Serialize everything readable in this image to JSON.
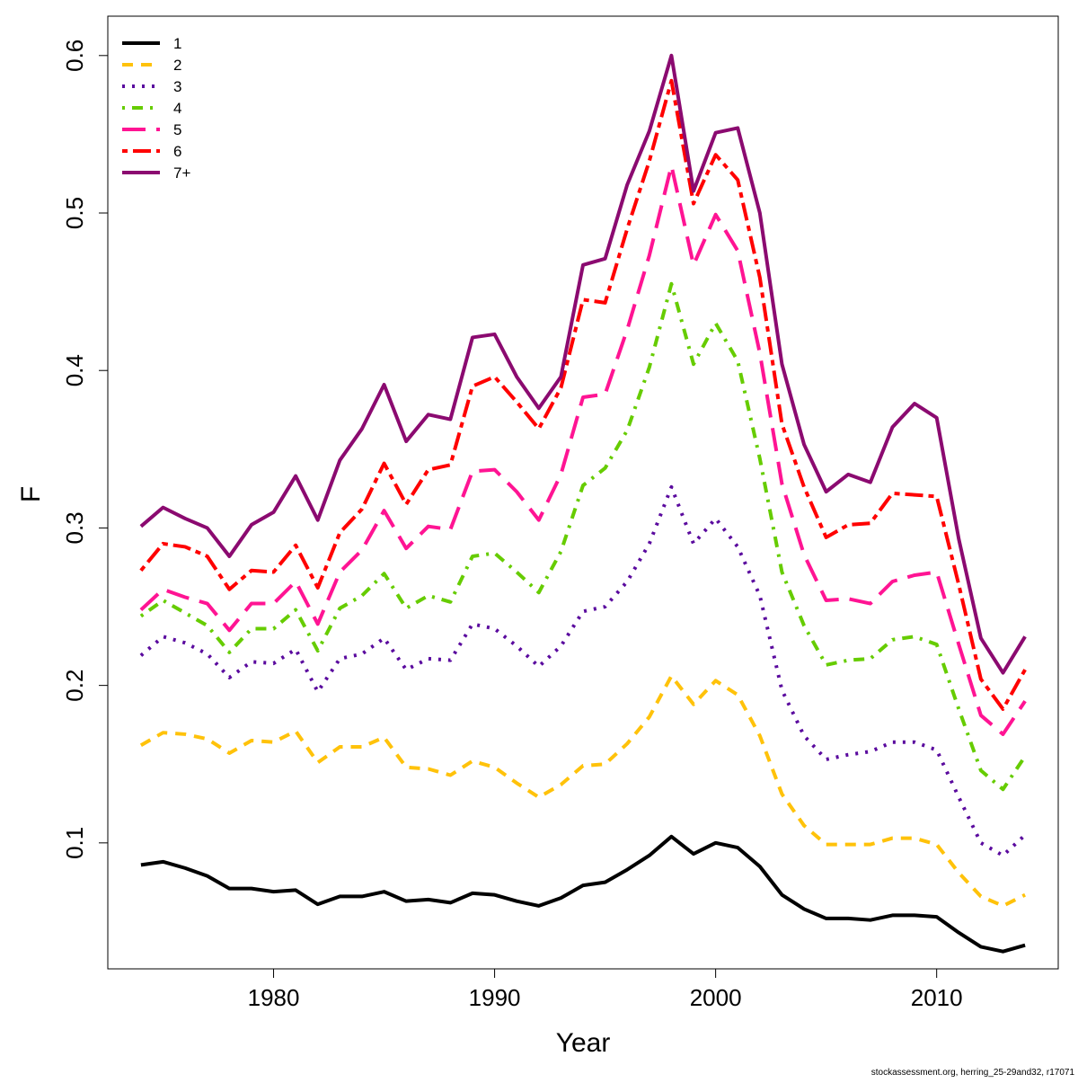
{
  "chart_data": {
    "type": "line",
    "xlabel": "Year",
    "ylabel": "F",
    "xlim": [
      1972.5,
      2015.5
    ],
    "ylim": [
      0.02,
      0.625
    ],
    "x_ticks": [
      1980,
      1990,
      2000,
      2010
    ],
    "y_ticks": [
      0.1,
      0.2,
      0.3,
      0.4,
      0.5,
      0.6
    ],
    "x_tick_labels": [
      "1980",
      "1990",
      "2000",
      "2010"
    ],
    "y_tick_labels": [
      "0.1",
      "0.2",
      "0.3",
      "0.4",
      "0.5",
      "0.6"
    ],
    "legend_position": "top-left",
    "grid": false,
    "x": [
      1974,
      1975,
      1976,
      1977,
      1978,
      1979,
      1980,
      1981,
      1982,
      1983,
      1984,
      1985,
      1986,
      1987,
      1988,
      1989,
      1990,
      1991,
      1992,
      1993,
      1994,
      1995,
      1996,
      1997,
      1998,
      1999,
      2000,
      2001,
      2002,
      2003,
      2004,
      2005,
      2006,
      2007,
      2008,
      2009,
      2010,
      2011,
      2012,
      2013,
      2014
    ],
    "series": [
      {
        "name": "1",
        "color": "#000000",
        "dash": "solid",
        "values": [
          0.086,
          0.088,
          0.084,
          0.079,
          0.071,
          0.071,
          0.069,
          0.07,
          0.061,
          0.066,
          0.066,
          0.069,
          0.063,
          0.064,
          0.062,
          0.068,
          0.067,
          0.063,
          0.06,
          0.065,
          0.073,
          0.075,
          0.083,
          0.092,
          0.104,
          0.093,
          0.1,
          0.097,
          0.085,
          0.067,
          0.058,
          0.052,
          0.052,
          0.051,
          0.054,
          0.054,
          0.053,
          0.043,
          0.034,
          0.031,
          0.035
        ]
      },
      {
        "name": "2",
        "color": "#FFC20A",
        "dash": "dashed",
        "values": [
          0.162,
          0.17,
          0.169,
          0.166,
          0.157,
          0.165,
          0.164,
          0.171,
          0.151,
          0.161,
          0.161,
          0.167,
          0.148,
          0.147,
          0.143,
          0.152,
          0.148,
          0.138,
          0.129,
          0.137,
          0.149,
          0.15,
          0.163,
          0.18,
          0.206,
          0.188,
          0.203,
          0.194,
          0.168,
          0.131,
          0.111,
          0.099,
          0.099,
          0.099,
          0.103,
          0.103,
          0.099,
          0.081,
          0.066,
          0.06,
          0.067
        ]
      },
      {
        "name": "3",
        "color": "#5A0A9E",
        "dash": "dotted",
        "values": [
          0.219,
          0.231,
          0.227,
          0.22,
          0.205,
          0.215,
          0.214,
          0.223,
          0.196,
          0.217,
          0.22,
          0.23,
          0.21,
          0.217,
          0.216,
          0.239,
          0.236,
          0.225,
          0.212,
          0.225,
          0.247,
          0.25,
          0.266,
          0.29,
          0.326,
          0.29,
          0.306,
          0.288,
          0.257,
          0.197,
          0.168,
          0.153,
          0.156,
          0.158,
          0.164,
          0.164,
          0.159,
          0.129,
          0.1,
          0.092,
          0.105
        ]
      },
      {
        "name": "4",
        "color": "#66CC00",
        "dash": "dotdash",
        "values": [
          0.244,
          0.254,
          0.246,
          0.238,
          0.221,
          0.236,
          0.236,
          0.248,
          0.222,
          0.249,
          0.257,
          0.271,
          0.249,
          0.257,
          0.253,
          0.282,
          0.284,
          0.272,
          0.259,
          0.285,
          0.327,
          0.338,
          0.362,
          0.402,
          0.455,
          0.404,
          0.43,
          0.406,
          0.344,
          0.272,
          0.238,
          0.213,
          0.216,
          0.217,
          0.229,
          0.231,
          0.226,
          0.185,
          0.146,
          0.134,
          0.155
        ]
      },
      {
        "name": "5",
        "color": "#FF1493",
        "dash": "longdash",
        "values": [
          0.248,
          0.261,
          0.256,
          0.252,
          0.235,
          0.252,
          0.252,
          0.266,
          0.239,
          0.272,
          0.286,
          0.311,
          0.287,
          0.301,
          0.299,
          0.336,
          0.337,
          0.323,
          0.305,
          0.334,
          0.383,
          0.385,
          0.426,
          0.473,
          0.53,
          0.467,
          0.499,
          0.476,
          0.411,
          0.328,
          0.283,
          0.254,
          0.255,
          0.252,
          0.266,
          0.27,
          0.272,
          0.226,
          0.181,
          0.169,
          0.19
        ]
      },
      {
        "name": "6",
        "color": "#FF0000",
        "dash": "twodash",
        "values": [
          0.273,
          0.29,
          0.288,
          0.282,
          0.261,
          0.273,
          0.272,
          0.289,
          0.262,
          0.297,
          0.312,
          0.341,
          0.315,
          0.337,
          0.34,
          0.39,
          0.396,
          0.38,
          0.363,
          0.389,
          0.445,
          0.443,
          0.49,
          0.533,
          0.584,
          0.506,
          0.537,
          0.521,
          0.459,
          0.366,
          0.326,
          0.294,
          0.302,
          0.303,
          0.322,
          0.321,
          0.32,
          0.264,
          0.204,
          0.185,
          0.21
        ]
      },
      {
        "name": "7+",
        "color": "#8B0A70",
        "dash": "solid",
        "values": [
          0.301,
          0.313,
          0.306,
          0.3,
          0.282,
          0.302,
          0.31,
          0.333,
          0.305,
          0.343,
          0.363,
          0.391,
          0.355,
          0.372,
          0.369,
          0.421,
          0.423,
          0.396,
          0.376,
          0.396,
          0.467,
          0.471,
          0.518,
          0.552,
          0.6,
          0.514,
          0.551,
          0.554,
          0.5,
          0.404,
          0.353,
          0.323,
          0.334,
          0.329,
          0.364,
          0.379,
          0.37,
          0.293,
          0.23,
          0.208,
          0.231
        ]
      }
    ]
  },
  "footer_text": "stockassessment.org, herring_25-29and32, r17071"
}
